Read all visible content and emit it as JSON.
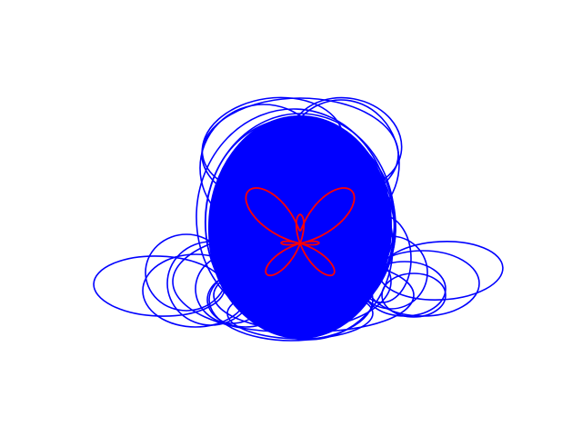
{
  "figure": {
    "background_color": "#ffffff",
    "loops_color": "#0000ff",
    "butterfly_color": "#ff0000"
  }
}
